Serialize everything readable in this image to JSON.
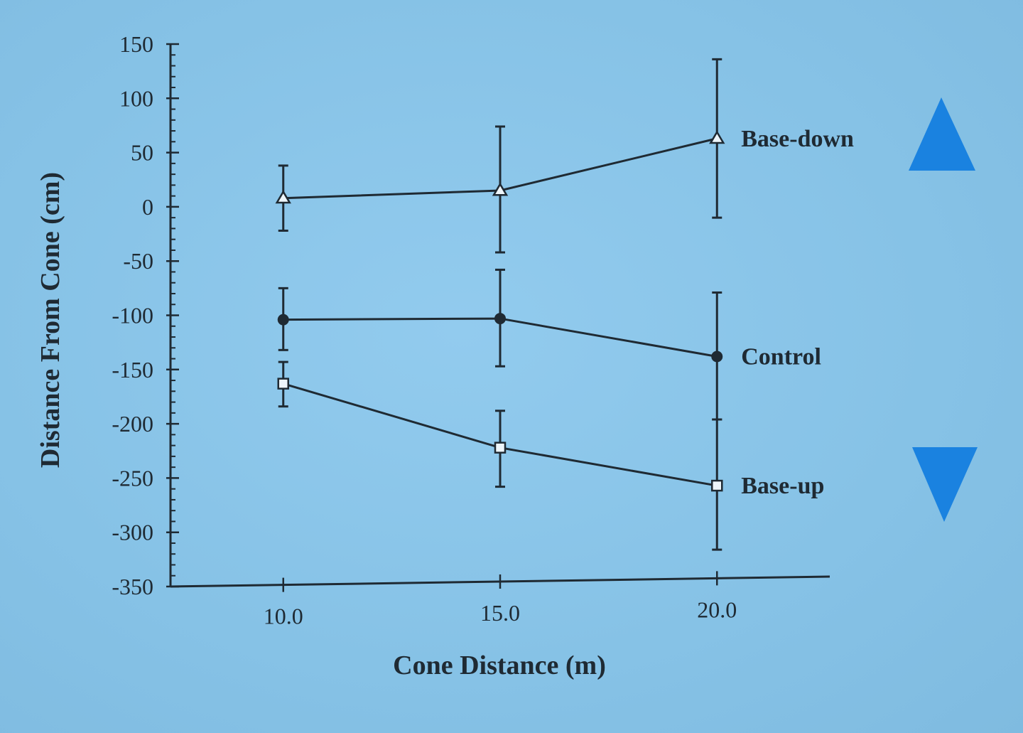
{
  "chart_data": {
    "type": "line",
    "xlabel": "Cone Distance (m)",
    "ylabel": "Distance From Cone (cm)",
    "x": [
      10.0,
      15.0,
      20.0
    ],
    "x_tick_labels": [
      "10.0",
      "15.0",
      "20.0"
    ],
    "xlim": [
      7.4,
      22.6
    ],
    "ylim": [
      -350,
      150
    ],
    "y_ticks": [
      150,
      100,
      50,
      0,
      -50,
      -100,
      -150,
      -200,
      -250,
      -300,
      -350
    ],
    "y_tick_labels": [
      "150",
      "100",
      "50",
      "0",
      "-50",
      "-100",
      "-150",
      "-200",
      "-250",
      "-300",
      "-350"
    ],
    "grid": false,
    "legend": "none",
    "series": [
      {
        "name": "Base-down",
        "marker": "open-triangle",
        "values": [
          8,
          15,
          63
        ],
        "error_low": [
          -22,
          -42,
          -10
        ],
        "error_high": [
          38,
          74,
          136
        ]
      },
      {
        "name": "Control",
        "marker": "filled-circle",
        "values": [
          -104,
          -103,
          -138
        ],
        "error_low": [
          -132,
          -147,
          -196
        ],
        "error_high": [
          -75,
          -58,
          -79
        ]
      },
      {
        "name": "Base-up",
        "marker": "open-square",
        "values": [
          -163,
          -222,
          -257
        ],
        "error_low": [
          -184,
          -258,
          -316
        ],
        "error_high": [
          -143,
          -188,
          -196
        ]
      }
    ],
    "decorations": {
      "arrow_up_color": "#1a82e0",
      "arrow_down_color": "#1a82e0",
      "ink_color": "#1f2a33"
    }
  }
}
